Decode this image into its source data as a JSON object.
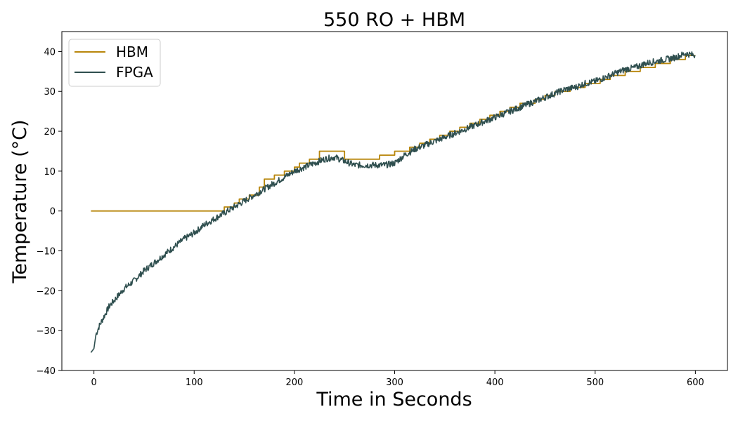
{
  "chart_data": {
    "type": "line",
    "title": "550 RO + HBM",
    "xlabel": "Time in Seconds",
    "ylabel": "Temperature (°C)",
    "xlim": [
      -32,
      632
    ],
    "ylim": [
      -40,
      45
    ],
    "xticks": [
      0,
      100,
      200,
      300,
      400,
      500,
      600
    ],
    "yticks": [
      -40,
      -30,
      -20,
      -10,
      0,
      10,
      20,
      30,
      40
    ],
    "grid": false,
    "legend_position": "upper-left",
    "series": [
      {
        "name": "HBM",
        "color": "#b8860b",
        "style": "step",
        "x": [
          -3,
          130,
          130,
          140,
          140,
          145,
          145,
          155,
          155,
          165,
          165,
          170,
          170,
          180,
          180,
          190,
          190,
          200,
          200,
          205,
          205,
          215,
          215,
          225,
          225,
          250,
          250,
          285,
          285,
          300,
          300,
          315,
          315,
          325,
          325,
          335,
          335,
          345,
          345,
          355,
          355,
          365,
          365,
          375,
          375,
          385,
          385,
          395,
          395,
          405,
          405,
          415,
          415,
          425,
          425,
          440,
          440,
          450,
          450,
          460,
          460,
          475,
          475,
          490,
          490,
          505,
          505,
          515,
          515,
          530,
          530,
          545,
          545,
          560,
          560,
          575,
          575,
          590,
          590,
          600
        ],
        "y": [
          0,
          0,
          1,
          1,
          2,
          2,
          3,
          3,
          4,
          4,
          6,
          6,
          8,
          8,
          9,
          9,
          10,
          10,
          11,
          11,
          12,
          12,
          13,
          13,
          15,
          15,
          13,
          13,
          14,
          14,
          15,
          15,
          16,
          16,
          17,
          17,
          18,
          18,
          19,
          19,
          20,
          20,
          21,
          21,
          22,
          22,
          23,
          23,
          24,
          24,
          25,
          25,
          26,
          26,
          27,
          27,
          28,
          28,
          29,
          29,
          30,
          30,
          31,
          31,
          32,
          32,
          33,
          33,
          34,
          34,
          35,
          35,
          36,
          36,
          37,
          37,
          38,
          38,
          39,
          39
        ]
      },
      {
        "name": "FPGA",
        "color": "#2f4f4f",
        "style": "noisy-line",
        "noise_amplitude": 0.8,
        "x": [
          -3,
          0,
          2,
          5,
          10,
          15,
          20,
          30,
          40,
          50,
          60,
          70,
          80,
          90,
          100,
          110,
          120,
          130,
          140,
          150,
          160,
          170,
          180,
          190,
          200,
          210,
          220,
          230,
          240,
          250,
          260,
          270,
          280,
          290,
          300,
          310,
          320,
          330,
          340,
          350,
          360,
          370,
          380,
          390,
          400,
          410,
          420,
          430,
          440,
          450,
          460,
          470,
          480,
          490,
          500,
          510,
          520,
          530,
          540,
          550,
          560,
          570,
          580,
          590,
          600
        ],
        "y": [
          -35.5,
          -34.5,
          -31,
          -29,
          -26.5,
          -24,
          -22.5,
          -19.5,
          -17.5,
          -15,
          -13,
          -11,
          -9,
          -7,
          -5.5,
          -3.5,
          -2,
          -0.5,
          1,
          2.5,
          4,
          5.5,
          7,
          8.5,
          10,
          11,
          12,
          13,
          13.5,
          12.5,
          11.5,
          11.5,
          11.5,
          11.5,
          12,
          14,
          15.5,
          16.5,
          17.5,
          18.5,
          19.5,
          20.5,
          21.5,
          22.5,
          23.5,
          24.5,
          25.5,
          26.5,
          27.5,
          28.5,
          29.5,
          30.5,
          31,
          32,
          32.5,
          33.5,
          34.5,
          35.5,
          36,
          37,
          37.5,
          38,
          38.5,
          39.5,
          39
        ]
      }
    ]
  }
}
